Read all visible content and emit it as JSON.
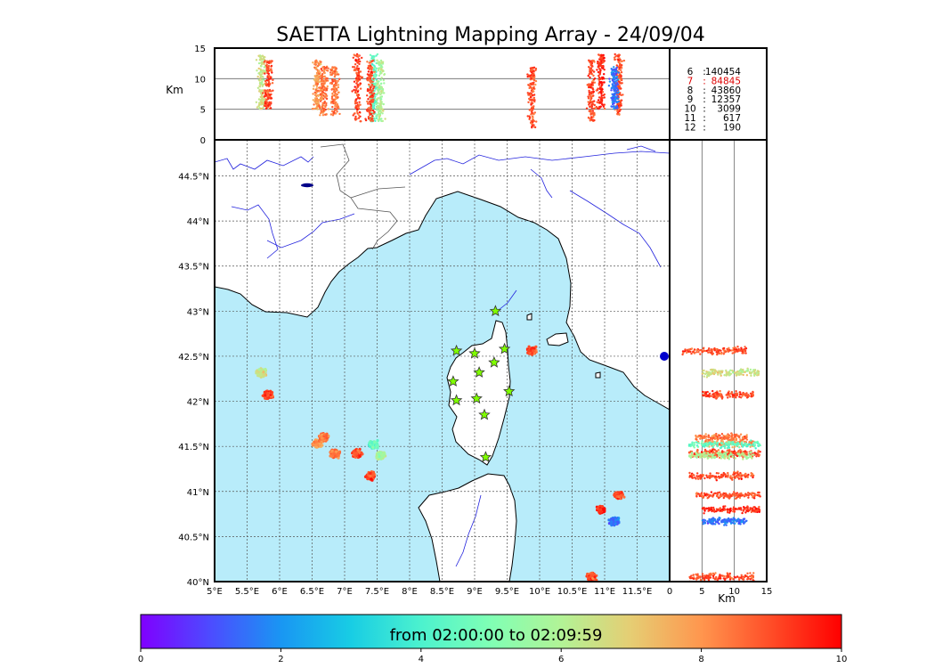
{
  "chart_data": {
    "type": "scatter",
    "title": "SAETTA Lightning Mapping Array - 24/09/04",
    "map": {
      "lon_ticks": [
        "5°E",
        "5.5°E",
        "6°E",
        "6.5°E",
        "7°E",
        "7.5°E",
        "8°E",
        "8.5°E",
        "9°E",
        "9.5°E",
        "10°E",
        "10.5°E",
        "11°E",
        "11.5°E"
      ],
      "lat_ticks": [
        "40°N",
        "40.5°N",
        "41°N",
        "41.5°N",
        "42°N",
        "42.5°N",
        "43°N",
        "43.5°N",
        "44°N",
        "44.5°N"
      ],
      "lon_range": [
        5,
        12
      ],
      "lat_range": [
        40,
        44.9
      ],
      "grid": "dotted",
      "sea_color": "#b8ecfa",
      "land_color": "#ffffff",
      "river_color": "#2222dd",
      "stations": [
        [
          9.32,
          43.0
        ],
        [
          8.72,
          42.56
        ],
        [
          9.0,
          42.53
        ],
        [
          9.46,
          42.58
        ],
        [
          9.3,
          42.43
        ],
        [
          9.07,
          42.32
        ],
        [
          8.67,
          42.22
        ],
        [
          9.53,
          42.11
        ],
        [
          8.72,
          42.01
        ],
        [
          9.03,
          42.03
        ],
        [
          9.15,
          41.85
        ],
        [
          9.17,
          41.38
        ]
      ]
    },
    "altitude_axis": {
      "label": "Km",
      "ticks": [
        "0",
        "5",
        "10",
        "15"
      ],
      "range": [
        0,
        15
      ]
    },
    "cells": [
      {
        "lon": 5.72,
        "lat": 42.32,
        "time": 6.5,
        "alt": [
          5,
          14
        ]
      },
      {
        "lon": 5.82,
        "lat": 42.07,
        "time": 9,
        "alt": [
          5,
          13
        ]
      },
      {
        "lon": 6.58,
        "lat": 41.53,
        "time": 8,
        "alt": [
          5,
          13
        ]
      },
      {
        "lon": 6.85,
        "lat": 41.42,
        "time": 8.5,
        "alt": [
          4,
          12
        ]
      },
      {
        "lon": 6.68,
        "lat": 41.6,
        "time": 8.5,
        "alt": [
          4,
          12
        ]
      },
      {
        "lon": 7.2,
        "lat": 41.42,
        "time": 9,
        "alt": [
          3,
          14
        ]
      },
      {
        "lon": 7.45,
        "lat": 41.52,
        "time": 4.5,
        "alt": [
          3,
          14
        ]
      },
      {
        "lon": 7.55,
        "lat": 41.4,
        "time": 6,
        "alt": [
          3,
          13
        ]
      },
      {
        "lon": 7.4,
        "lat": 41.17,
        "time": 9,
        "alt": [
          3,
          13
        ]
      },
      {
        "lon": 9.88,
        "lat": 42.56,
        "time": 9,
        "alt": [
          2,
          12
        ]
      },
      {
        "lon": 11.22,
        "lat": 40.96,
        "time": 9,
        "alt": [
          4,
          14
        ]
      },
      {
        "lon": 10.95,
        "lat": 40.8,
        "time": 9.5,
        "alt": [
          5,
          14
        ]
      },
      {
        "lon": 11.15,
        "lat": 40.67,
        "time": 1.5,
        "alt": [
          5,
          12
        ]
      },
      {
        "lon": 10.8,
        "lat": 40.05,
        "time": 9,
        "alt": [
          3,
          13
        ]
      }
    ],
    "source_counts": [
      {
        "stations": "6",
        "count": "140454"
      },
      {
        "stations": "7",
        "count": "84845"
      },
      {
        "stations": "8",
        "count": "43860"
      },
      {
        "stations": "9",
        "count": "12357"
      },
      {
        "stations": "10",
        "count": "3099"
      },
      {
        "stations": "11",
        "count": "617"
      },
      {
        "stations": "12",
        "count": "190"
      }
    ],
    "highlight_color": "#dd0000",
    "colorbar": {
      "label": "from 02:00:00 to 02:09:59",
      "ticks": [
        "0",
        "2",
        "4",
        "6",
        "8",
        "10"
      ],
      "range": [
        0,
        10
      ],
      "colors": [
        "#8000ff",
        "#4c4cff",
        "#1996f3",
        "#18cde4",
        "#4cf2ce",
        "#80ffb4",
        "#b2f396",
        "#e6cd73",
        "#ff964e",
        "#ff4c27",
        "#ff0000"
      ]
    }
  }
}
